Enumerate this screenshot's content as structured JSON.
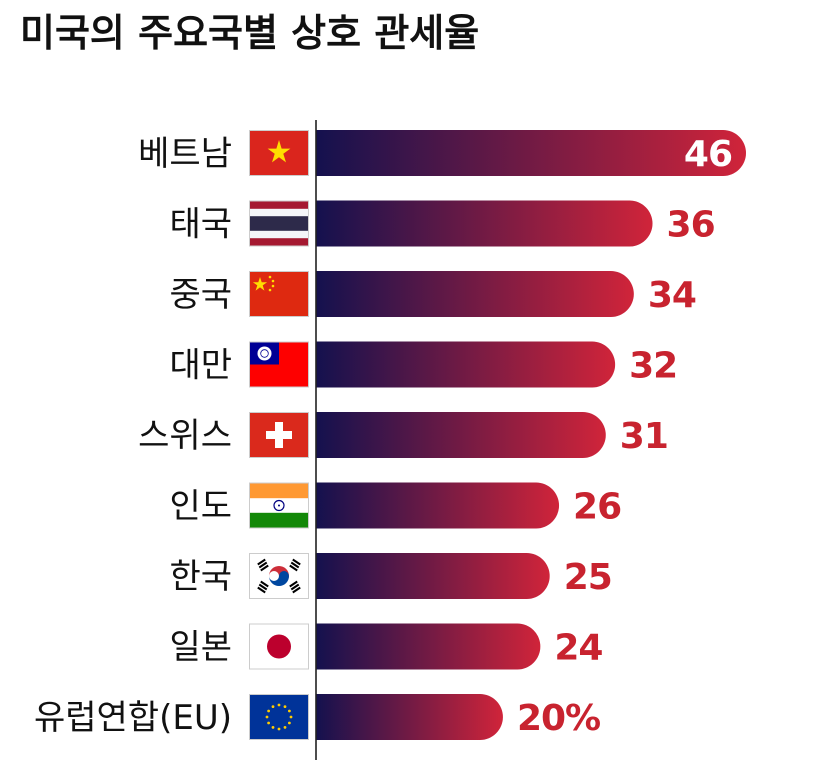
{
  "chart_data": {
    "type": "bar",
    "orientation": "horizontal",
    "title": "미국의 주요국별 상호 관세율",
    "categories": [
      "베트남",
      "태국",
      "중국",
      "대만",
      "스위스",
      "인도",
      "한국",
      "일본",
      "유럽연합(EU)"
    ],
    "values": [
      46,
      36,
      34,
      32,
      31,
      26,
      25,
      24,
      20
    ],
    "value_labels": [
      "46",
      "36",
      "34",
      "32",
      "31",
      "26",
      "25",
      "24",
      "20%"
    ],
    "flags": [
      "vietnam-flag",
      "thailand-flag",
      "china-flag",
      "taiwan-flag",
      "switzerland-flag",
      "india-flag",
      "korea-flag",
      "japan-flag",
      "eu-flag"
    ],
    "xlim": [
      0,
      46
    ],
    "grid": false,
    "legend": "none"
  },
  "colors": {
    "bar_start": "#14114e",
    "bar_end": "#d0243a",
    "value_text": "#c8232f",
    "value_text_inside": "#ffffff",
    "axis": "#222222"
  }
}
